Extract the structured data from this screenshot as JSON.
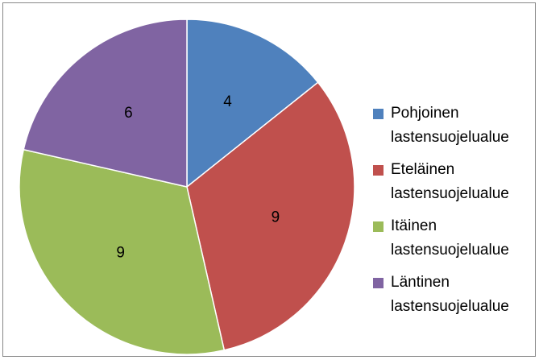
{
  "chart_data": {
    "type": "pie",
    "categories": [
      "Pohjoinen lastensuojelualue",
      "Eteläinen lastensuojelualue",
      "Itäinen lastensuojelualue",
      "Läntinen lastensuojelualue"
    ],
    "values": [
      4,
      9,
      9,
      6
    ],
    "colors": [
      "#4f81bd",
      "#c0504d",
      "#9bbb59",
      "#8064a2"
    ],
    "legend": "right"
  }
}
